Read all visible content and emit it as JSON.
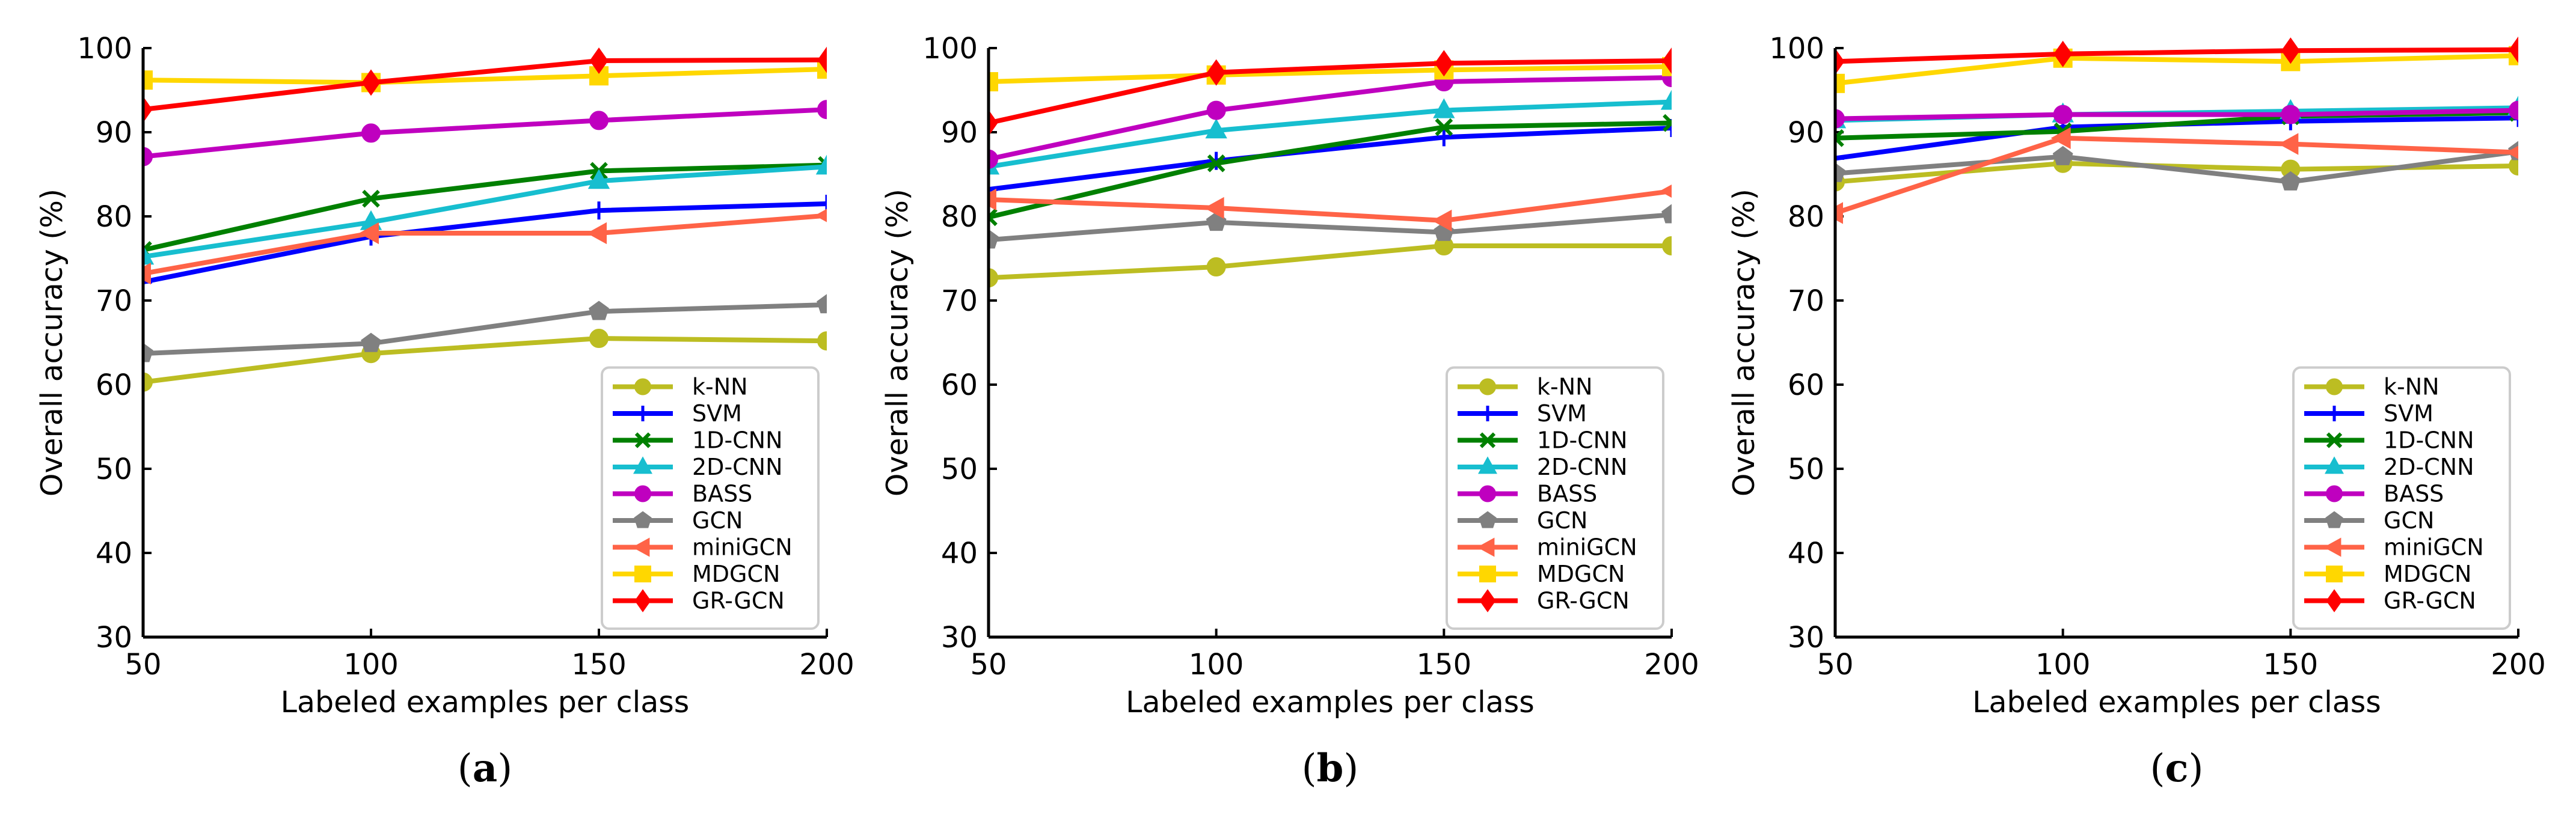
{
  "chart_data": [
    {
      "type": "line",
      "panel_label": "a",
      "xlabel": "Labeled examples per class",
      "ylabel": "Overall accuracy (%)",
      "x": [
        50,
        100,
        150,
        200
      ],
      "xlim": [
        50,
        200
      ],
      "ylim": [
        30,
        100
      ],
      "xticks": [
        "50",
        "100",
        "150",
        "200"
      ],
      "yticks": [
        "30",
        "40",
        "50",
        "60",
        "70",
        "80",
        "90",
        "100"
      ],
      "legend_position": "lower-right",
      "series": [
        {
          "name": "k-NN",
          "color": "#bcbd22",
          "marker": "circle",
          "values": [
            60.3,
            63.7,
            65.5,
            65.2
          ]
        },
        {
          "name": "SVM",
          "color": "#0000ff",
          "marker": "plus",
          "values": [
            72.2,
            77.6,
            80.7,
            81.5
          ]
        },
        {
          "name": "1D-CNN",
          "color": "#008000",
          "marker": "x",
          "values": [
            76.0,
            82.1,
            85.4,
            86.1
          ]
        },
        {
          "name": "2D-CNN",
          "color": "#17becf",
          "marker": "triangle",
          "values": [
            75.2,
            79.3,
            84.2,
            85.9
          ]
        },
        {
          "name": "BASS",
          "color": "#bf00bf",
          "marker": "circle",
          "values": [
            87.1,
            89.9,
            91.4,
            92.7
          ]
        },
        {
          "name": "GCN",
          "color": "#808080",
          "marker": "pentagon",
          "values": [
            63.7,
            64.9,
            68.7,
            69.5
          ]
        },
        {
          "name": "miniGCN",
          "color": "#ff6347",
          "marker": "triangle-left",
          "values": [
            73.2,
            78.0,
            78.0,
            80.1
          ]
        },
        {
          "name": "MDGCN",
          "color": "#ffd700",
          "marker": "square",
          "values": [
            96.2,
            95.9,
            96.7,
            97.5
          ]
        },
        {
          "name": "GR-GCN",
          "color": "#ff0000",
          "marker": "diamond",
          "values": [
            92.7,
            95.9,
            98.5,
            98.6
          ]
        }
      ]
    },
    {
      "type": "line",
      "panel_label": "b",
      "xlabel": "Labeled examples per class",
      "ylabel": "Overall accuracy (%)",
      "x": [
        50,
        100,
        150,
        200
      ],
      "xlim": [
        50,
        200
      ],
      "ylim": [
        30,
        100
      ],
      "xticks": [
        "50",
        "100",
        "150",
        "200"
      ],
      "yticks": [
        "30",
        "40",
        "50",
        "60",
        "70",
        "80",
        "90",
        "100"
      ],
      "legend_position": "lower-right",
      "series": [
        {
          "name": "k-NN",
          "color": "#bcbd22",
          "marker": "circle",
          "values": [
            72.7,
            74.0,
            76.5,
            76.5
          ]
        },
        {
          "name": "SVM",
          "color": "#0000ff",
          "marker": "plus",
          "values": [
            83.2,
            86.6,
            89.4,
            90.5
          ]
        },
        {
          "name": "1D-CNN",
          "color": "#008000",
          "marker": "x",
          "values": [
            79.9,
            86.3,
            90.6,
            91.1
          ]
        },
        {
          "name": "2D-CNN",
          "color": "#17becf",
          "marker": "triangle",
          "values": [
            85.9,
            90.2,
            92.6,
            93.6
          ]
        },
        {
          "name": "BASS",
          "color": "#bf00bf",
          "marker": "circle",
          "values": [
            86.8,
            92.6,
            96.0,
            96.5
          ]
        },
        {
          "name": "GCN",
          "color": "#808080",
          "marker": "pentagon",
          "values": [
            77.2,
            79.3,
            78.1,
            80.2
          ]
        },
        {
          "name": "miniGCN",
          "color": "#ff6347",
          "marker": "triangle-left",
          "values": [
            82.0,
            81.0,
            79.5,
            83.0
          ]
        },
        {
          "name": "MDGCN",
          "color": "#ffd700",
          "marker": "square",
          "values": [
            96.0,
            96.8,
            97.4,
            97.8
          ]
        },
        {
          "name": "GR-GCN",
          "color": "#ff0000",
          "marker": "diamond",
          "values": [
            91.1,
            97.1,
            98.2,
            98.5
          ]
        }
      ]
    },
    {
      "type": "line",
      "panel_label": "c",
      "xlabel": "Labeled examples per class",
      "ylabel": "Overall accuracy (%)",
      "x": [
        50,
        100,
        150,
        200
      ],
      "xlim": [
        50,
        200
      ],
      "ylim": [
        30,
        100
      ],
      "xticks": [
        "50",
        "100",
        "150",
        "200"
      ],
      "yticks": [
        "30",
        "40",
        "50",
        "60",
        "70",
        "80",
        "90",
        "100"
      ],
      "legend_position": "lower-right",
      "series": [
        {
          "name": "k-NN",
          "color": "#bcbd22",
          "marker": "circle",
          "values": [
            84.1,
            86.3,
            85.6,
            86.0
          ]
        },
        {
          "name": "SVM",
          "color": "#0000ff",
          "marker": "plus",
          "values": [
            86.9,
            90.6,
            91.3,
            91.7
          ]
        },
        {
          "name": "1D-CNN",
          "color": "#008000",
          "marker": "x",
          "values": [
            89.3,
            90.1,
            91.9,
            92.3
          ]
        },
        {
          "name": "2D-CNN",
          "color": "#17becf",
          "marker": "triangle",
          "values": [
            91.4,
            92.1,
            92.5,
            92.9
          ]
        },
        {
          "name": "BASS",
          "color": "#bf00bf",
          "marker": "circle",
          "values": [
            91.6,
            92.1,
            92.1,
            92.6
          ]
        },
        {
          "name": "GCN",
          "color": "#808080",
          "marker": "pentagon",
          "values": [
            85.1,
            87.1,
            84.1,
            87.7
          ]
        },
        {
          "name": "miniGCN",
          "color": "#ff6347",
          "marker": "triangle-left",
          "values": [
            80.4,
            89.3,
            88.6,
            87.6
          ]
        },
        {
          "name": "MDGCN",
          "color": "#ffd700",
          "marker": "square",
          "values": [
            95.8,
            98.8,
            98.4,
            99.1
          ]
        },
        {
          "name": "GR-GCN",
          "color": "#ff0000",
          "marker": "diamond",
          "values": [
            98.4,
            99.3,
            99.7,
            99.8
          ]
        }
      ]
    }
  ]
}
